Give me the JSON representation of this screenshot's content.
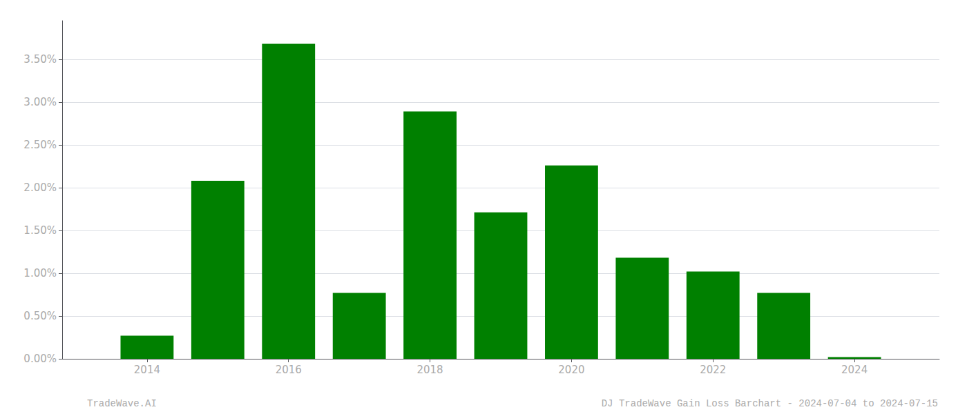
{
  "chart_data": {
    "type": "bar",
    "x": [
      2014,
      2015,
      2016,
      2017,
      2018,
      2019,
      2020,
      2021,
      2022,
      2023,
      2024
    ],
    "values": [
      0.0027,
      0.0208,
      0.0368,
      0.0077,
      0.0289,
      0.0171,
      0.0226,
      0.0118,
      0.0102,
      0.0077,
      0.0002
    ],
    "color": "#008000",
    "xlim": [
      2012.8,
      2025.2
    ],
    "xticks": [
      2014,
      2016,
      2018,
      2020,
      2022,
      2024
    ],
    "ylim": [
      0,
      0.0395
    ],
    "yticks": [
      {
        "value": 0.0,
        "label": "0.00%"
      },
      {
        "value": 0.005,
        "label": "0.50%"
      },
      {
        "value": 0.01,
        "label": "1.00%"
      },
      {
        "value": 0.015,
        "label": "1.50%"
      },
      {
        "value": 0.02,
        "label": "2.00%"
      },
      {
        "value": 0.025,
        "label": "2.50%"
      },
      {
        "value": 0.03,
        "label": "3.00%"
      },
      {
        "value": 0.035,
        "label": "3.50%"
      }
    ],
    "grid": true,
    "annotations": [
      "TradeWave.AI",
      "DJ TradeWave Gain Loss Barchart - 2024-07-04 to 2024-07-15"
    ]
  }
}
